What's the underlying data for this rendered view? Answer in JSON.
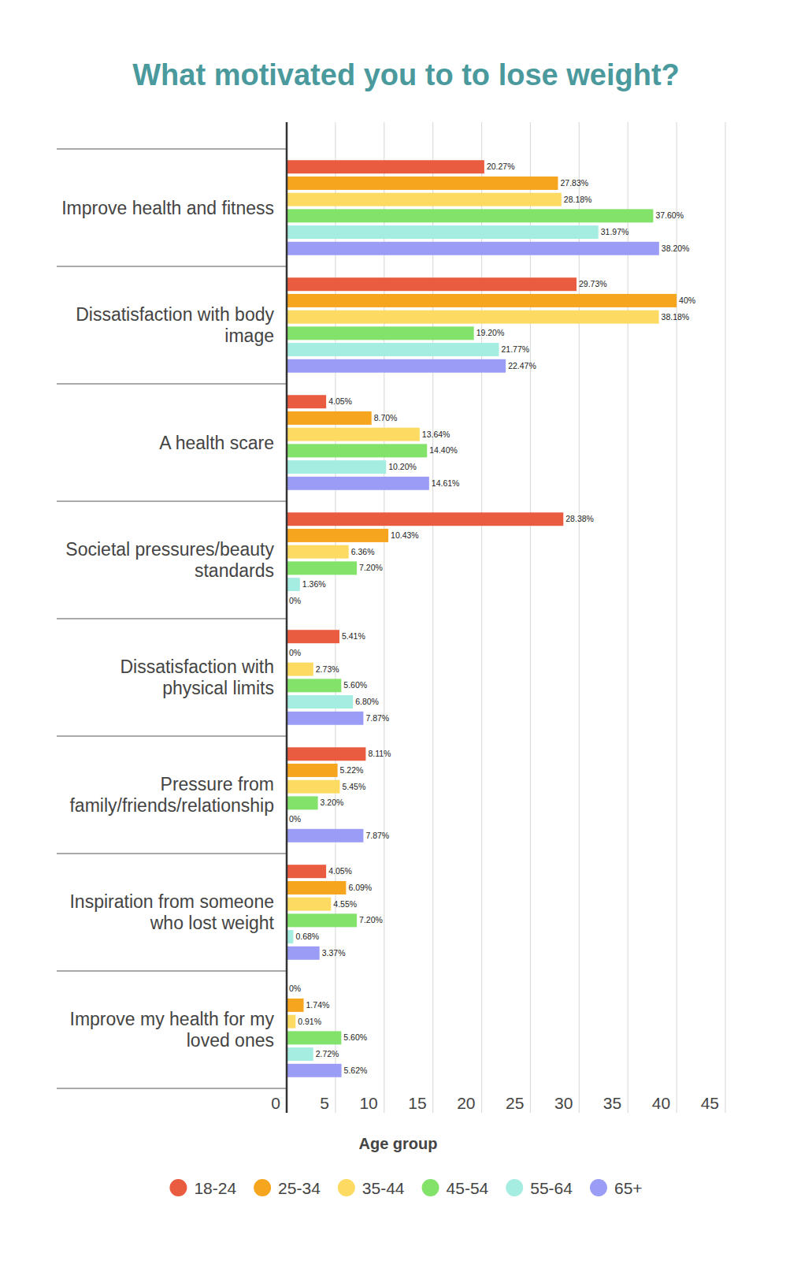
{
  "chart_data": {
    "type": "bar",
    "orientation": "horizontal",
    "title": "What motivated you to to lose weight?",
    "xlabel": "Age group",
    "categories": [
      "Improve health and fitness",
      "Dissatisfaction with body image",
      "A health scare",
      "Societal pressures/beauty standards",
      "Dissatisfaction with physical limits",
      "Pressure from family/friends/relationship",
      "Inspiration from someone who lost weight",
      "Improve my health for my loved ones"
    ],
    "series": [
      {
        "name": "18-24",
        "color": "#ea5c40",
        "values": [
          20.27,
          29.73,
          4.05,
          28.38,
          5.41,
          8.11,
          4.05,
          0
        ],
        "value_labels": [
          "20.27%",
          "29.73%",
          "4.05%",
          "28.38%",
          "5.41%",
          "8.11%",
          "4.05%",
          "0%"
        ]
      },
      {
        "name": "25-34",
        "color": "#f6a51f",
        "values": [
          27.83,
          40,
          8.7,
          10.43,
          0,
          5.22,
          6.09,
          1.74
        ],
        "value_labels": [
          "27.83%",
          "40%",
          "8.70%",
          "10.43%",
          "0%",
          "5.22%",
          "6.09%",
          "1.74%"
        ]
      },
      {
        "name": "35-44",
        "color": "#fddb63",
        "values": [
          28.18,
          38.18,
          13.64,
          6.36,
          2.73,
          5.45,
          4.55,
          0.91
        ],
        "value_labels": [
          "28.18%",
          "38.18%",
          "13.64%",
          "6.36%",
          "2.73%",
          "5.45%",
          "4.55%",
          "0.91%"
        ]
      },
      {
        "name": "45-54",
        "color": "#82e26a",
        "values": [
          37.6,
          19.2,
          14.4,
          7.2,
          5.6,
          3.2,
          7.2,
          5.6
        ],
        "value_labels": [
          "37.60%",
          "19.20%",
          "14.40%",
          "7.20%",
          "5.60%",
          "3.20%",
          "7.20%",
          "5.60%"
        ]
      },
      {
        "name": "55-64",
        "color": "#a5ede1",
        "values": [
          31.97,
          21.77,
          10.2,
          1.36,
          6.8,
          0,
          0.68,
          2.72
        ],
        "value_labels": [
          "31.97%",
          "21.77%",
          "10.20%",
          "1.36%",
          "6.80%",
          "0%",
          "0.68%",
          "2.72%"
        ]
      },
      {
        "name": "65+",
        "color": "#9b9cf5",
        "values": [
          38.2,
          22.47,
          14.61,
          0,
          7.87,
          7.87,
          3.37,
          5.62
        ],
        "value_labels": [
          "38.20%",
          "22.47%",
          "14.61%",
          "0%",
          "7.87%",
          "7.87%",
          "3.37%",
          "5.62%"
        ]
      }
    ],
    "xlim": [
      0,
      45
    ],
    "xticks": [
      0,
      5,
      10,
      15,
      20,
      25,
      30,
      35,
      40,
      45
    ],
    "grid": true,
    "data_labels": true,
    "legend": "bottom"
  }
}
